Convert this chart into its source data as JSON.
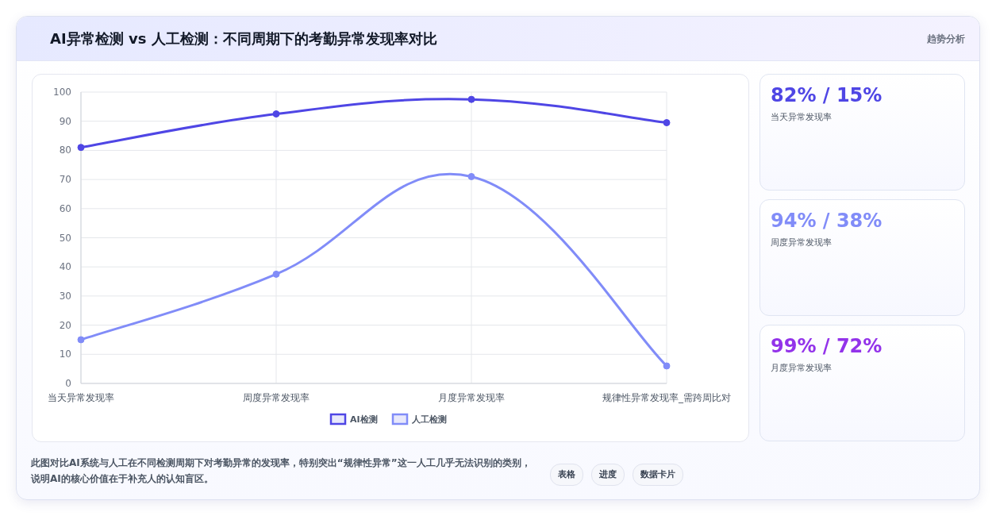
{
  "chart_data": [
    {
      "type": "line",
      "title": "AI异常检测 vs 人工检测：不同周期下的考勤异常发现率对比",
      "categories": [
        "当天异常发现率",
        "周度异常发现率",
        "月度异常发现率",
        "规律性异常发现率_需跨周比对"
      ],
      "series": [
        {
          "name": "AI检测",
          "color": "#4f46e5",
          "values": [
            81,
            92.5,
            97.5,
            89.5
          ]
        },
        {
          "name": "人工检测",
          "color": "#818cf8",
          "values": [
            15,
            37.5,
            71,
            6
          ]
        }
      ],
      "ylim": [
        0,
        100
      ],
      "yticks": [
        0,
        10,
        20,
        30,
        40,
        50,
        60,
        70,
        80,
        90,
        100
      ],
      "grid": true,
      "legend": "bottom",
      "marker": "circle",
      "line_style": "solid",
      "annotations": [
        "此图对比AI系统与人工在不同检测周期下对考勤异常的发现率，特别突出“规律性异常”这一人工几乎无法识别的类别，说明AI的核心价值在于补充人的认知盲区。",
        "表格",
        "进度",
        "数据卡片"
      ]
    },
    {
      "type": "other",
      "title": "趋势分析",
      "value_labels": [
        "82% / 15%",
        "94% / 38%",
        "99% / 72%"
      ],
      "colors": [
        "#4f46e5",
        "#818cf8",
        "#9333ea"
      ],
      "annotations": [
        "当天异常发现率",
        "周度异常发现率",
        "月度异常发现率"
      ]
    }
  ]
}
